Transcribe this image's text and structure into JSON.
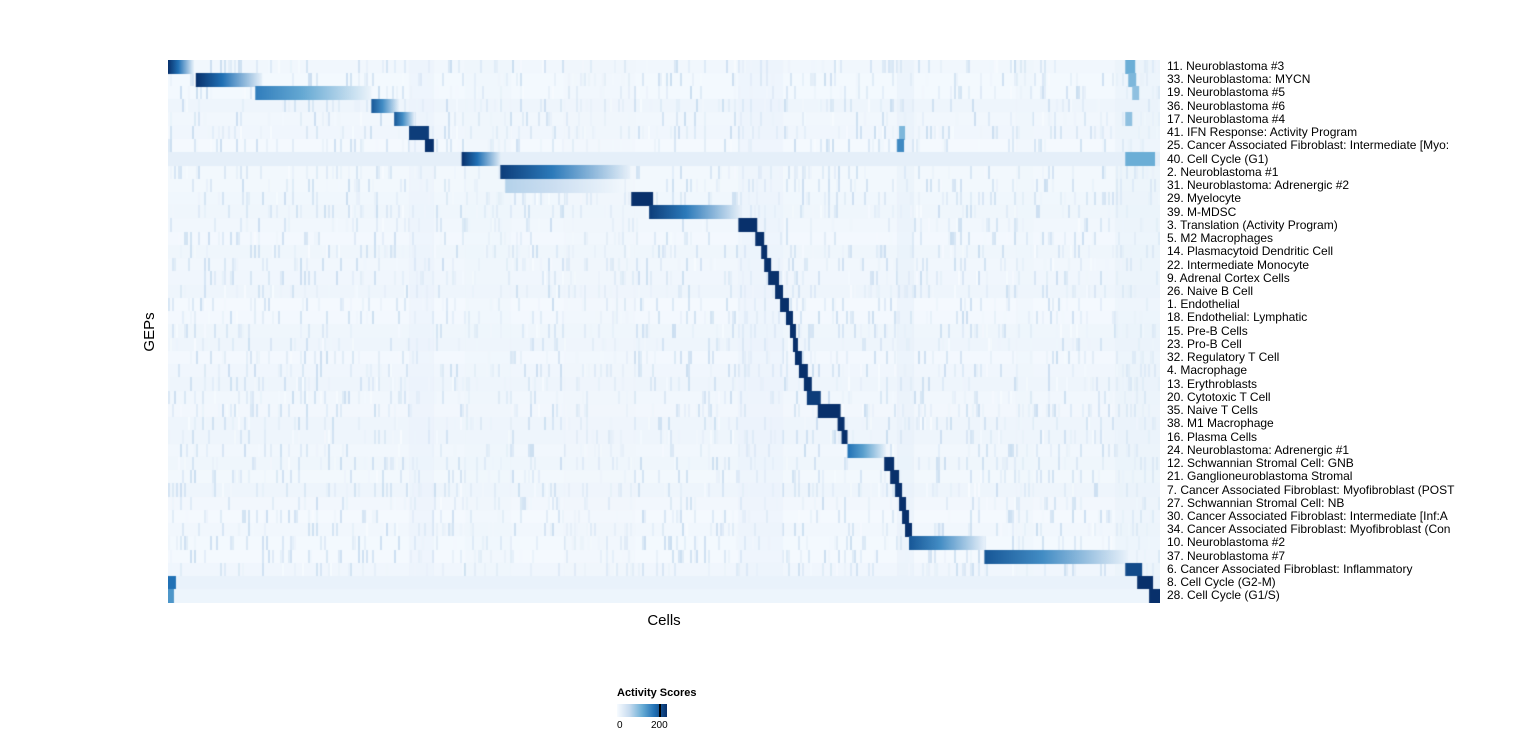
{
  "chart_data": {
    "type": "heatmap",
    "title": "",
    "xlabel": "Cells",
    "ylabel": "GEPs",
    "colorbar": {
      "title": "Activity Scores",
      "ticks": [
        0,
        200
      ],
      "tick_labels": [
        "0",
        "200"
      ]
    },
    "value_range": [
      0,
      200
    ],
    "background": "#f6fafd",
    "colormap": [
      {
        "t": 0.0,
        "color": "#f7fbff"
      },
      {
        "t": 0.25,
        "color": "#c6dbef"
      },
      {
        "t": 0.5,
        "color": "#6baed6"
      },
      {
        "t": 0.75,
        "color": "#2171b5"
      },
      {
        "t": 1.0,
        "color": "#08306b"
      }
    ],
    "noise": {
      "seed": 987654321,
      "threshold": 0.8,
      "scale": 1.1,
      "row_tint_base": 0.015,
      "row_tint_var": 0.035
    },
    "col_bands": [
      [
        0.243,
        0.268,
        0.07
      ],
      [
        0.3,
        0.345,
        0.05
      ],
      [
        0.4,
        0.47,
        0.04
      ],
      [
        0.575,
        0.62,
        0.07
      ],
      [
        0.735,
        0.752,
        0.09
      ],
      [
        0.855,
        0.872,
        0.05
      ],
      [
        0.955,
        1.0,
        0.08
      ]
    ],
    "rows": [
      {
        "label": "11. Neuroblastoma #3",
        "blocks": [
          [
            0.0,
            0.026,
            1.0,
            1
          ],
          [
            0.965,
            0.975,
            0.5,
            0
          ]
        ]
      },
      {
        "label": "33. Neuroblastoma: MYCN",
        "blocks": [
          [
            0.028,
            0.095,
            1.0,
            1
          ],
          [
            0.968,
            0.976,
            0.45,
            0
          ]
        ]
      },
      {
        "label": "19. Neuroblastoma #5",
        "blocks": [
          [
            0.088,
            0.205,
            0.7,
            1
          ],
          [
            0.972,
            0.979,
            0.4,
            0
          ]
        ]
      },
      {
        "label": "36. Neuroblastoma #6",
        "blocks": [
          [
            0.205,
            0.233,
            0.85,
            1
          ]
        ]
      },
      {
        "label": "17. Neuroblastoma #4",
        "blocks": [
          [
            0.228,
            0.249,
            0.85,
            1
          ],
          [
            0.965,
            0.972,
            0.4,
            0
          ]
        ]
      },
      {
        "label": "41. IFN Response: Activity Program",
        "blocks": [
          [
            0.243,
            0.263,
            0.95,
            0
          ],
          [
            0.737,
            0.743,
            0.45,
            0
          ]
        ]
      },
      {
        "label": "25. Cancer Associated Fibroblast: Intermediate [Myo:",
        "blocks": [
          [
            0.259,
            0.268,
            1.0,
            0
          ],
          [
            0.735,
            0.742,
            0.65,
            0
          ]
        ]
      },
      {
        "label": "40. Cell Cycle (G1)",
        "blocks": [
          [
            0.0,
            1.0,
            0.09,
            0
          ],
          [
            0.296,
            0.336,
            1.0,
            1
          ],
          [
            0.965,
            0.995,
            0.5,
            0
          ]
        ]
      },
      {
        "label": "2. Neuroblastoma #1",
        "blocks": [
          [
            0.335,
            0.466,
            0.95,
            1
          ]
        ]
      },
      {
        "label": "31. Neuroblastoma: Adrenergic #2",
        "blocks": [
          [
            0.34,
            0.46,
            0.3,
            1
          ]
        ]
      },
      {
        "label": "29. Myelocyte",
        "blocks": [
          [
            0.467,
            0.489,
            1.0,
            0
          ]
        ]
      },
      {
        "label": "39. M-MDSC",
        "blocks": [
          [
            0.485,
            0.578,
            0.95,
            1
          ]
        ]
      },
      {
        "label": "3. Translation (Activity Program)",
        "blocks": [
          [
            0.575,
            0.594,
            1.0,
            0
          ]
        ]
      },
      {
        "label": "5. M2 Macrophages",
        "blocks": [
          [
            0.592,
            0.601,
            1.0,
            0
          ]
        ]
      },
      {
        "label": "14. Plasmacytoid Dendritic Cell",
        "blocks": [
          [
            0.598,
            0.604,
            1.0,
            0
          ]
        ]
      },
      {
        "label": "22. Intermediate Monocyte",
        "blocks": [
          [
            0.601,
            0.608,
            1.0,
            0
          ]
        ]
      },
      {
        "label": "9. Adrenal Cortex Cells",
        "blocks": [
          [
            0.605,
            0.616,
            1.0,
            0
          ]
        ]
      },
      {
        "label": "26. Naive B Cell",
        "blocks": [
          [
            0.612,
            0.62,
            1.0,
            0
          ]
        ]
      },
      {
        "label": "1. Endothelial",
        "blocks": [
          [
            0.617,
            0.626,
            1.0,
            0
          ]
        ]
      },
      {
        "label": "18. Endothelial: Lymphatic",
        "blocks": [
          [
            0.623,
            0.63,
            1.0,
            0
          ]
        ]
      },
      {
        "label": "15. Pre-B Cells",
        "blocks": [
          [
            0.627,
            0.633,
            1.0,
            0
          ]
        ]
      },
      {
        "label": "23. Pro-B Cell",
        "blocks": [
          [
            0.63,
            0.635,
            1.0,
            0
          ]
        ]
      },
      {
        "label": "32. Regulatory T Cell",
        "blocks": [
          [
            0.632,
            0.639,
            1.0,
            0
          ]
        ]
      },
      {
        "label": "4. Macrophage",
        "blocks": [
          [
            0.636,
            0.645,
            1.0,
            0
          ]
        ]
      },
      {
        "label": "13. Erythroblasts",
        "blocks": [
          [
            0.641,
            0.649,
            1.0,
            0
          ]
        ]
      },
      {
        "label": "20. Cytotoxic T Cell",
        "blocks": [
          [
            0.644,
            0.658,
            0.95,
            0
          ]
        ]
      },
      {
        "label": "35. Naive T Cells",
        "blocks": [
          [
            0.655,
            0.678,
            1.0,
            0
          ]
        ]
      },
      {
        "label": "38. M1 Macrophage",
        "blocks": [
          [
            0.675,
            0.682,
            1.0,
            0
          ]
        ]
      },
      {
        "label": "16. Plasma Cells",
        "blocks": [
          [
            0.679,
            0.685,
            1.0,
            0
          ]
        ]
      },
      {
        "label": "24. Neuroblastoma: Adrenergic #1",
        "blocks": [
          [
            0.685,
            0.724,
            0.75,
            1
          ]
        ]
      },
      {
        "label": "12. Schwannian Stromal Cell: GNB",
        "blocks": [
          [
            0.722,
            0.732,
            1.0,
            0
          ]
        ]
      },
      {
        "label": "21. Ganglioneuroblastoma Stromal",
        "blocks": [
          [
            0.728,
            0.737,
            1.0,
            0
          ]
        ]
      },
      {
        "label": "7. Cancer Associated Fibroblast: Myofibroblast (POST",
        "blocks": [
          [
            0.733,
            0.74,
            1.0,
            0
          ]
        ]
      },
      {
        "label": "27. Schwannian Stromal Cell: NB",
        "blocks": [
          [
            0.737,
            0.744,
            1.0,
            0
          ]
        ]
      },
      {
        "label": "30. Cancer Associated Fibroblast: Intermediate [Inf:A",
        "blocks": [
          [
            0.74,
            0.747,
            1.0,
            0
          ]
        ]
      },
      {
        "label": "34. Cancer Associated Fibroblast: Myofibroblast (Con",
        "blocks": [
          [
            0.743,
            0.75,
            1.0,
            0
          ]
        ]
      },
      {
        "label": "10. Neuroblastoma #2",
        "blocks": [
          [
            0.747,
            0.824,
            0.85,
            1
          ]
        ]
      },
      {
        "label": "37. Neuroblastoma #7",
        "blocks": [
          [
            0.823,
            0.968,
            0.85,
            1
          ]
        ]
      },
      {
        "label": "6. Cancer Associated Fibroblast: Inflammatory",
        "blocks": [
          [
            0.965,
            0.982,
            0.9,
            0
          ]
        ]
      },
      {
        "label": "8. Cell Cycle (G2-M)",
        "blocks": [
          [
            0.0,
            1.0,
            0.07,
            0
          ],
          [
            0.0,
            0.008,
            0.75,
            0
          ],
          [
            0.977,
            0.993,
            1.0,
            0
          ]
        ]
      },
      {
        "label": "28. Cell Cycle (G1/S)",
        "blocks": [
          [
            0.0,
            1.0,
            0.05,
            0
          ],
          [
            0.0,
            0.006,
            0.6,
            0
          ],
          [
            0.989,
            1.0,
            1.0,
            0
          ]
        ]
      }
    ]
  }
}
